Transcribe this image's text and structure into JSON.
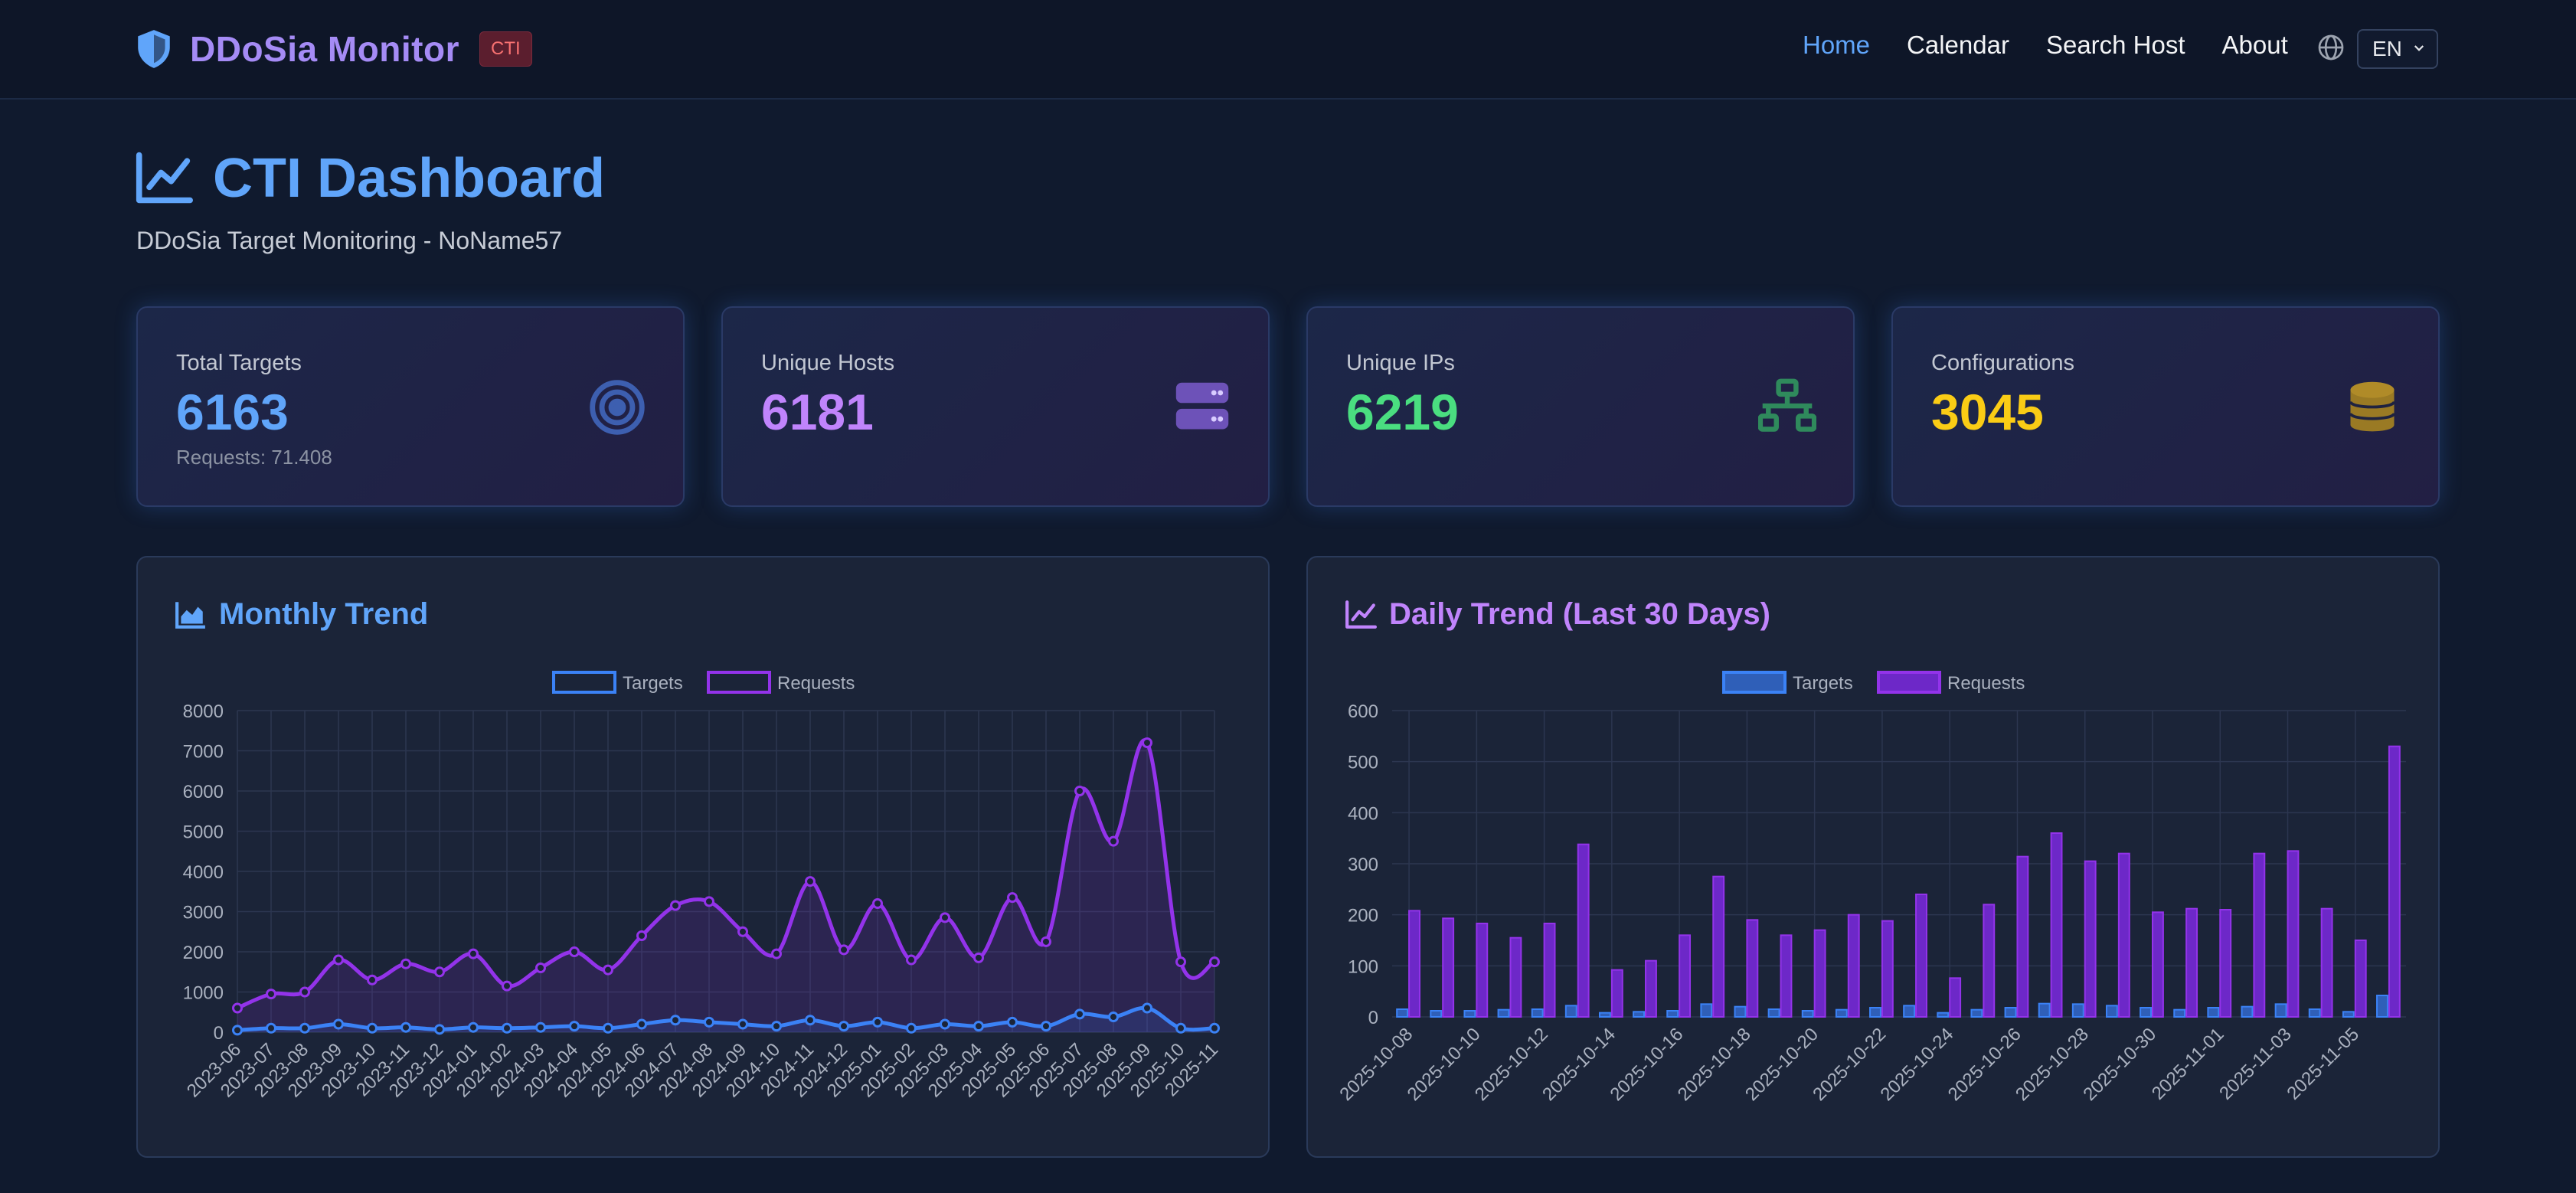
{
  "brand": {
    "title": "DDoSia Monitor",
    "badge": "CTI"
  },
  "nav": {
    "items": [
      "Home",
      "Calendar",
      "Search Host",
      "About"
    ],
    "active": "Home",
    "language": "EN"
  },
  "page": {
    "title": "CTI Dashboard",
    "subtitle": "DDoSia Target Monitoring - NoName57"
  },
  "stats": [
    {
      "label": "Total Targets",
      "value": "6163",
      "extra": "Requests: 71.408",
      "color": "#60a5fa",
      "icon": "target-icon"
    },
    {
      "label": "Unique Hosts",
      "value": "6181",
      "color": "#c084fc",
      "icon": "server-icon"
    },
    {
      "label": "Unique IPs",
      "value": "6219",
      "color": "#4ade80",
      "icon": "network-icon"
    },
    {
      "label": "Configurations",
      "value": "3045",
      "color": "#facc15",
      "icon": "database-icon"
    }
  ],
  "colors": {
    "targets": "#3b82f6",
    "requests": "#9333ea",
    "monthly_title": "#60a5fa",
    "daily_title": "#c084fc"
  },
  "chart_data": [
    {
      "type": "line",
      "title": "Monthly Trend",
      "x": [
        "2023-06",
        "2023-07",
        "2023-08",
        "2023-09",
        "2023-10",
        "2023-11",
        "2023-12",
        "2024-01",
        "2024-02",
        "2024-03",
        "2024-04",
        "2024-05",
        "2024-06",
        "2024-07",
        "2024-08",
        "2024-09",
        "2024-10",
        "2024-11",
        "2024-12",
        "2025-01",
        "2025-02",
        "2025-03",
        "2025-04",
        "2025-05",
        "2025-06",
        "2025-07",
        "2025-08",
        "2025-09",
        "2025-10",
        "2025-11"
      ],
      "series": [
        {
          "name": "Targets",
          "values": [
            50,
            100,
            100,
            200,
            100,
            120,
            70,
            120,
            100,
            120,
            150,
            100,
            200,
            300,
            250,
            200,
            150,
            300,
            150,
            250,
            100,
            200,
            150,
            250,
            150,
            450,
            380,
            600,
            100,
            100
          ]
        },
        {
          "name": "Requests",
          "values": [
            600,
            950,
            1000,
            1800,
            1300,
            1700,
            1500,
            1950,
            1150,
            1600,
            2000,
            1550,
            2400,
            3150,
            3250,
            2500,
            1950,
            3750,
            2050,
            3200,
            1800,
            2850,
            1850,
            3350,
            2250,
            6000,
            4750,
            7200,
            1750,
            1750
          ]
        }
      ],
      "ylim": [
        0,
        8000
      ],
      "yticks": [
        0,
        1000,
        2000,
        3000,
        4000,
        5000,
        6000,
        7000,
        8000
      ],
      "legend": "top"
    },
    {
      "type": "bar",
      "title": "Daily Trend (Last 30 Days)",
      "categories": [
        "2025-10-08",
        "2025-10-09",
        "2025-10-10",
        "2025-10-11",
        "2025-10-12",
        "2025-10-13",
        "2025-10-14",
        "2025-10-15",
        "2025-10-16",
        "2025-10-17",
        "2025-10-18",
        "2025-10-19",
        "2025-10-20",
        "2025-10-21",
        "2025-10-22",
        "2025-10-23",
        "2025-10-24",
        "2025-10-25",
        "2025-10-26",
        "2025-10-27",
        "2025-10-28",
        "2025-10-29",
        "2025-10-30",
        "2025-10-31",
        "2025-11-01",
        "2025-11-02",
        "2025-11-03",
        "2025-11-04",
        "2025-11-05",
        "2025-11-06"
      ],
      "tick_labels": [
        "2025-10-08",
        "2025-10-10",
        "2025-10-12",
        "2025-10-14",
        "2025-10-16",
        "2025-10-18",
        "2025-10-20",
        "2025-10-22",
        "2025-10-24",
        "2025-10-26",
        "2025-10-28",
        "2025-10-30",
        "2025-11-01",
        "2025-11-03",
        "2025-11-05"
      ],
      "series": [
        {
          "name": "Targets",
          "values": [
            15,
            12,
            12,
            14,
            15,
            22,
            8,
            10,
            12,
            25,
            20,
            15,
            12,
            14,
            18,
            22,
            8,
            14,
            18,
            26,
            25,
            22,
            18,
            14,
            18,
            20,
            25,
            15,
            10,
            42
          ]
        },
        {
          "name": "Requests",
          "values": [
            208,
            193,
            183,
            155,
            183,
            338,
            92,
            110,
            160,
            275,
            190,
            160,
            170,
            200,
            188,
            240,
            76,
            220,
            314,
            360,
            305,
            320,
            205,
            212,
            210,
            320,
            325,
            212,
            150,
            530
          ]
        }
      ],
      "ylim": [
        0,
        600
      ],
      "yticks": [
        0,
        100,
        200,
        300,
        400,
        500,
        600
      ],
      "legend": "top"
    }
  ]
}
